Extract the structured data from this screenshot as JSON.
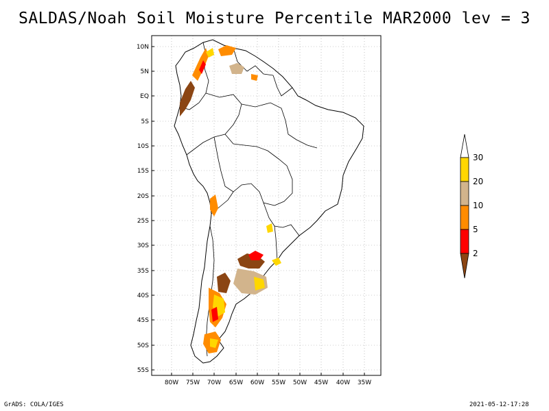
{
  "title": "SALDAS/Noah Soil Moisture Percentile MAR2000 lev = 3",
  "footer": {
    "left": "GrADS: COLA/IGES",
    "right": "2021-05-12-17:28"
  },
  "map": {
    "region": "South America",
    "lat_range": [
      -56,
      12
    ],
    "lon_range": [
      -81,
      -32
    ],
    "lat_labels": [
      "10N",
      "5N",
      "EQ",
      "5S",
      "10S",
      "15S",
      "20S",
      "25S",
      "30S",
      "35S",
      "40S",
      "45S",
      "50S",
      "55S"
    ],
    "lon_labels": [
      "80W",
      "75W",
      "70W",
      "65W",
      "60W",
      "55W",
      "50W",
      "45W",
      "40W",
      "35W"
    ],
    "grid": "dotted"
  },
  "legend": {
    "labels": [
      "2",
      "5",
      "10",
      "20",
      "30"
    ],
    "colors": [
      "#8b4513",
      "#ff0000",
      "#ff8c00",
      "#d2b48c",
      "#ffd700",
      "#ffffff"
    ]
  }
}
